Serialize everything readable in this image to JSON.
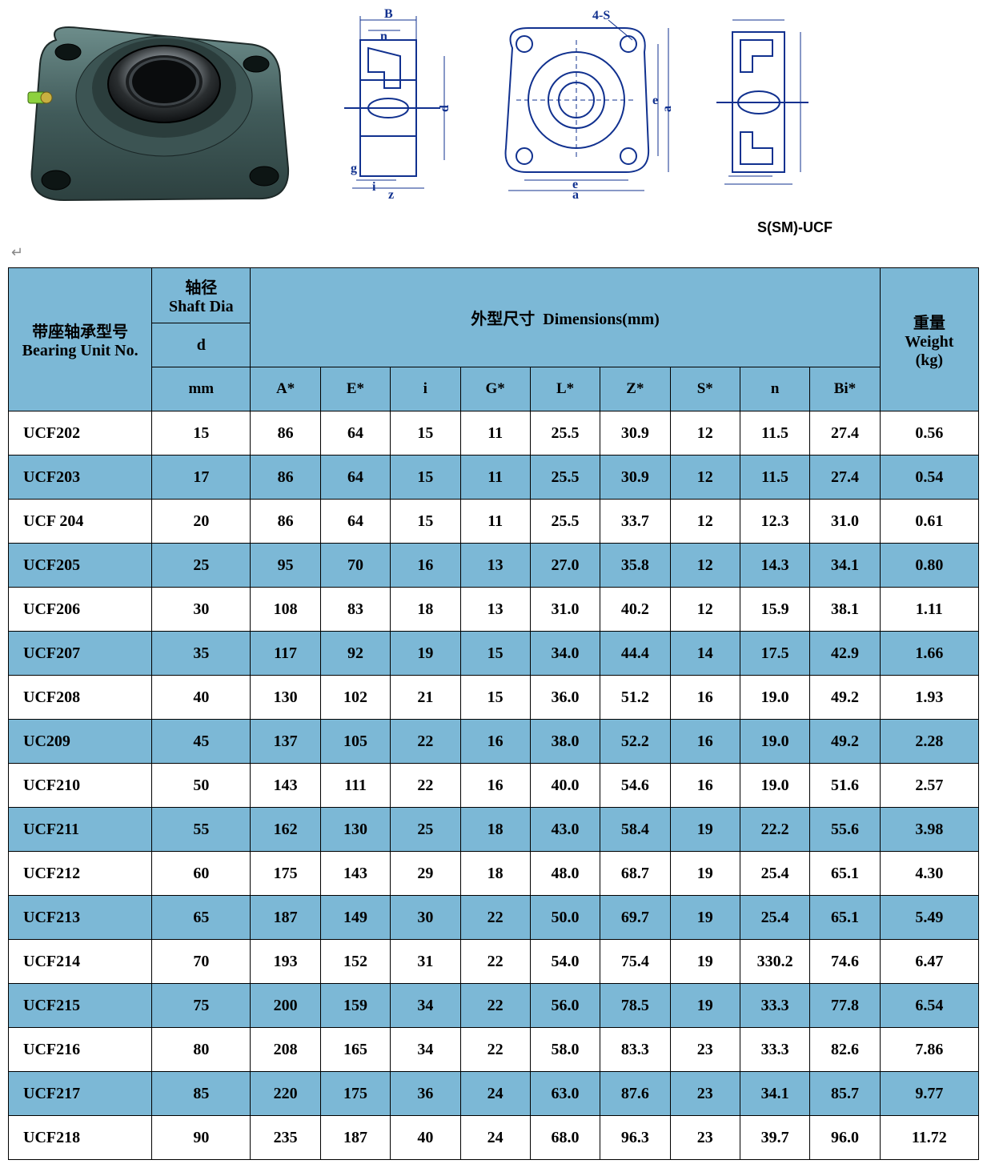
{
  "diagram_label": "S(SM)-UCF",
  "return_symbol": "↵",
  "table": {
    "headers": {
      "bearing_no_cn": "带座轴承型号",
      "bearing_no_en": "Bearing Unit No.",
      "shaft_dia_cn": "轴径",
      "shaft_dia_en": "Shaft Dia",
      "d": "d",
      "mm": "mm",
      "dimensions_cn": "外型尺寸",
      "dimensions_en": "Dimensions(mm)",
      "weight_cn": "重量",
      "weight_en": "Weight",
      "weight_unit": "(kg)",
      "cols": [
        "A*",
        "E*",
        "i",
        "G*",
        "L*",
        "Z*",
        "S*",
        "n",
        "Bi*"
      ]
    },
    "rows": [
      {
        "no": "UCF202",
        "d": "15",
        "A": "86",
        "E": "64",
        "i": "15",
        "G": "11",
        "L": "25.5",
        "Z": "30.9",
        "S": "12",
        "n": "11.5",
        "Bi": "27.4",
        "wt": "0.56"
      },
      {
        "no": "UCF203",
        "d": "17",
        "A": "86",
        "E": "64",
        "i": "15",
        "G": "11",
        "L": "25.5",
        "Z": "30.9",
        "S": "12",
        "n": "11.5",
        "Bi": "27.4",
        "wt": "0.54"
      },
      {
        "no": "UCF 204",
        "d": "20",
        "A": "86",
        "E": "64",
        "i": "15",
        "G": "11",
        "L": "25.5",
        "Z": "33.7",
        "S": "12",
        "n": "12.3",
        "Bi": "31.0",
        "wt": "0.61"
      },
      {
        "no": "UCF205",
        "d": "25",
        "A": "95",
        "E": "70",
        "i": "16",
        "G": "13",
        "L": "27.0",
        "Z": "35.8",
        "S": "12",
        "n": "14.3",
        "Bi": "34.1",
        "wt": "0.80"
      },
      {
        "no": "UCF206",
        "d": "30",
        "A": "108",
        "E": "83",
        "i": "18",
        "G": "13",
        "L": "31.0",
        "Z": "40.2",
        "S": "12",
        "n": "15.9",
        "Bi": "38.1",
        "wt": "1.11"
      },
      {
        "no": "UCF207",
        "d": "35",
        "A": "117",
        "E": "92",
        "i": "19",
        "G": "15",
        "L": "34.0",
        "Z": "44.4",
        "S": "14",
        "n": "17.5",
        "Bi": "42.9",
        "wt": "1.66"
      },
      {
        "no": "UCF208",
        "d": "40",
        "A": "130",
        "E": "102",
        "i": "21",
        "G": "15",
        "L": "36.0",
        "Z": "51.2",
        "S": "16",
        "n": "19.0",
        "Bi": "49.2",
        "wt": "1.93"
      },
      {
        "no": "UC209",
        "d": "45",
        "A": "137",
        "E": "105",
        "i": "22",
        "G": "16",
        "L": "38.0",
        "Z": "52.2",
        "S": "16",
        "n": "19.0",
        "Bi": "49.2",
        "wt": "2.28"
      },
      {
        "no": "UCF210",
        "d": "50",
        "A": "143",
        "E": "111",
        "i": "22",
        "G": "16",
        "L": "40.0",
        "Z": "54.6",
        "S": "16",
        "n": "19.0",
        "Bi": "51.6",
        "wt": "2.57"
      },
      {
        "no": "UCF211",
        "d": "55",
        "A": "162",
        "E": "130",
        "i": "25",
        "G": "18",
        "L": "43.0",
        "Z": "58.4",
        "S": "19",
        "n": "22.2",
        "Bi": "55.6",
        "wt": "3.98"
      },
      {
        "no": "UCF212",
        "d": "60",
        "A": "175",
        "E": "143",
        "i": "29",
        "G": "18",
        "L": "48.0",
        "Z": "68.7",
        "S": "19",
        "n": "25.4",
        "Bi": "65.1",
        "wt": "4.30"
      },
      {
        "no": "UCF213",
        "d": "65",
        "A": "187",
        "E": "149",
        "i": "30",
        "G": "22",
        "L": "50.0",
        "Z": "69.7",
        "S": "19",
        "n": "25.4",
        "Bi": "65.1",
        "wt": "5.49"
      },
      {
        "no": "UCF214",
        "d": "70",
        "A": "193",
        "E": "152",
        "i": "31",
        "G": "22",
        "L": "54.0",
        "Z": "75.4",
        "S": "19",
        "n": "330.2",
        "Bi": "74.6",
        "wt": "6.47"
      },
      {
        "no": "UCF215",
        "d": "75",
        "A": "200",
        "E": "159",
        "i": "34",
        "G": "22",
        "L": "56.0",
        "Z": "78.5",
        "S": "19",
        "n": "33.3",
        "Bi": "77.8",
        "wt": "6.54"
      },
      {
        "no": "UCF216",
        "d": "80",
        "A": "208",
        "E": "165",
        "i": "34",
        "G": "22",
        "L": "58.0",
        "Z": "83.3",
        "S": "23",
        "n": "33.3",
        "Bi": "82.6",
        "wt": "7.86"
      },
      {
        "no": "UCF217",
        "d": "85",
        "A": "220",
        "E": "175",
        "i": "36",
        "G": "24",
        "L": "63.0",
        "Z": "87.6",
        "S": "23",
        "n": "34.1",
        "Bi": "85.7",
        "wt": "9.77"
      },
      {
        "no": "UCF218",
        "d": "90",
        "A": "235",
        "E": "187",
        "i": "40",
        "G": "24",
        "L": "68.0",
        "Z": "96.3",
        "S": "23",
        "n": "39.7",
        "Bi": "96.0",
        "wt": "11.72"
      }
    ],
    "styling": {
      "header_bg": "#7cb8d6",
      "row_even_bg": "#7cb8d6",
      "row_odd_bg": "#ffffff",
      "border_color": "#000000",
      "font_family": "Times New Roman",
      "font_weight": "bold",
      "header_fontsize": 20,
      "cell_fontsize": 20
    }
  },
  "photo": {
    "description": "flange-bearing-photo",
    "housing_color": "#4a6b6a",
    "bore_color": "#9aa3a8"
  },
  "dim_labels": {
    "side": [
      "B",
      "n",
      "d",
      "g",
      "i",
      "z"
    ],
    "front": [
      "4-S",
      "e",
      "a",
      "e",
      "a"
    ],
    "right": []
  }
}
